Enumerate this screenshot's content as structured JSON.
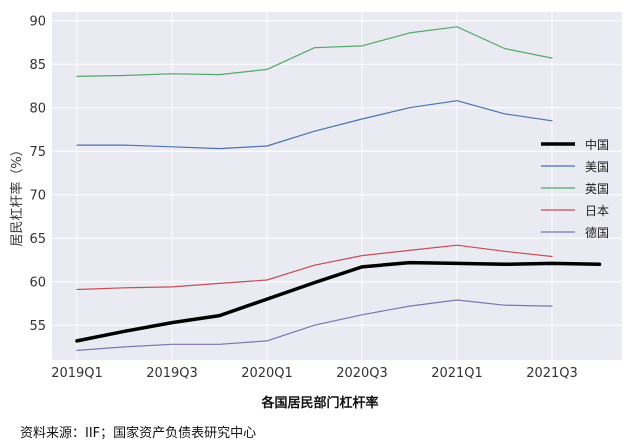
{
  "chart_data": {
    "type": "line",
    "title": "",
    "xlabel": "",
    "ylabel": "居民杠杆率（%）",
    "ylim": [
      51,
      91
    ],
    "yticks": [
      55,
      60,
      65,
      70,
      75,
      80,
      85,
      90
    ],
    "x": [
      "2019Q1",
      "2019Q2",
      "2019Q3",
      "2019Q4",
      "2020Q1",
      "2020Q2",
      "2020Q3",
      "2020Q4",
      "2021Q1",
      "2021Q2",
      "2021Q3",
      "2021Q4"
    ],
    "xtick_labels": [
      "2019Q1",
      "2019Q3",
      "2020Q1",
      "2020Q3",
      "2021Q1",
      "2021Q3"
    ],
    "grid": true,
    "legend_position": "right",
    "series": [
      {
        "name": "中国",
        "color": "#000000",
        "width": 3.5,
        "values": [
          53.2,
          54.3,
          55.3,
          56.1,
          58.0,
          59.9,
          61.7,
          62.2,
          62.1,
          62.0,
          62.1,
          62.0
        ]
      },
      {
        "name": "美国",
        "color": "#4c72b0",
        "width": 1.2,
        "values": [
          75.7,
          75.7,
          75.5,
          75.3,
          75.6,
          77.3,
          78.7,
          80.0,
          80.8,
          79.3,
          78.5,
          null
        ]
      },
      {
        "name": "英国",
        "color": "#55a868",
        "width": 1.2,
        "values": [
          83.6,
          83.7,
          83.9,
          83.8,
          84.4,
          86.9,
          87.1,
          88.6,
          89.3,
          86.8,
          85.7,
          null
        ]
      },
      {
        "name": "日本",
        "color": "#c44e52",
        "width": 1.2,
        "values": [
          59.1,
          59.3,
          59.4,
          59.8,
          60.2,
          61.9,
          63.0,
          63.6,
          64.2,
          63.5,
          62.9,
          null
        ]
      },
      {
        "name": "德国",
        "color": "#8172b2",
        "width": 1.2,
        "values": [
          52.1,
          52.5,
          52.8,
          52.8,
          53.2,
          55.0,
          56.2,
          57.2,
          57.9,
          57.3,
          57.2,
          null
        ]
      }
    ]
  },
  "caption": "各国居民部门杠杆率",
  "source": "资料来源：IIF；国家资产负债表研究中心"
}
